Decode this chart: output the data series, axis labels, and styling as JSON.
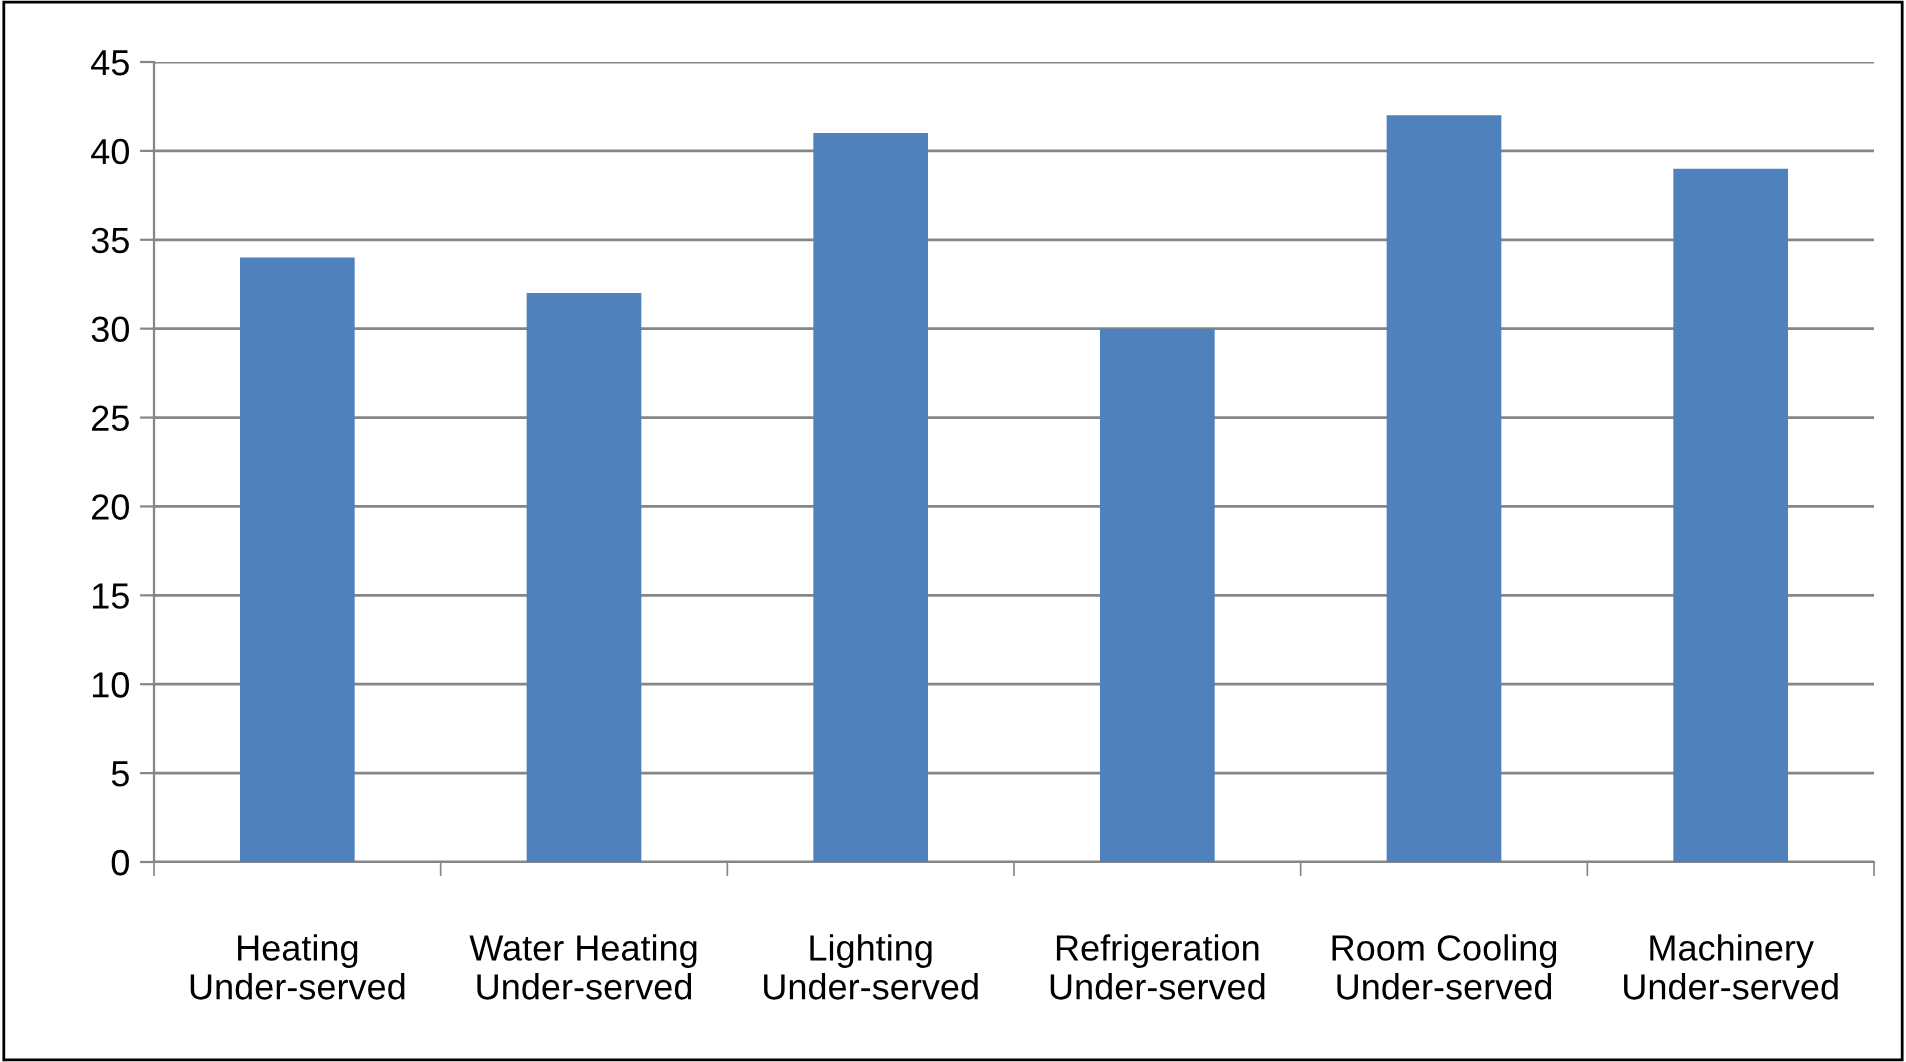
{
  "chart_data": {
    "type": "bar",
    "categories": [
      "Heating\nUnder-served",
      "Water Heating\nUnder-served",
      "Lighting\nUnder-served",
      "Refrigeration\nUnder-served",
      "Room Cooling\nUnder-served",
      "Machinery\nUnder-served"
    ],
    "values": [
      34,
      32,
      41,
      30,
      42,
      39
    ],
    "color": "#4f81bd",
    "ylim": [
      0,
      45
    ],
    "yticks": [
      0,
      5,
      10,
      15,
      20,
      25,
      30,
      35,
      40,
      45
    ],
    "grid": "y",
    "legend": false
  }
}
